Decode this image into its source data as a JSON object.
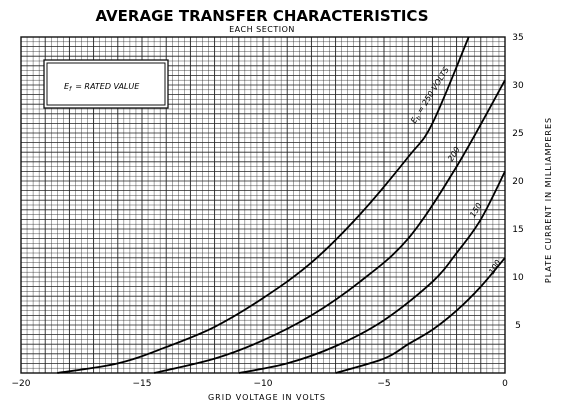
{
  "chart_data": {
    "type": "line",
    "title": "AVERAGE TRANSFER CHARACTERISTICS",
    "subtitle": "EACH SECTION",
    "xlabel": "GRID VOLTAGE IN VOLTS",
    "ylabel": "PLATE CURRENT IN MILLIAMPERES",
    "xlim": [
      -20,
      0
    ],
    "ylim": [
      0,
      35
    ],
    "x_ticks": [
      -20,
      -15,
      -10,
      -5,
      0
    ],
    "x_tick_labels": [
      "−20",
      "−15",
      "−10",
      "−5",
      "0"
    ],
    "y_ticks": [
      5,
      10,
      15,
      20,
      25,
      30,
      35
    ],
    "y_tick_labels": [
      "5",
      "10",
      "15",
      "20",
      "25",
      "30",
      "35"
    ],
    "grid": true,
    "note": {
      "symbol": "E",
      "subscript": "f",
      "text": "= RATED VALUE"
    },
    "series": [
      {
        "name": "Eb = 250 VOLTS",
        "label_symbol": "E",
        "label_subscript": "b",
        "label_text": "= 250 VOLTS",
        "x": [
          -18.5,
          -16,
          -14,
          -12,
          -10,
          -8,
          -6,
          -4,
          -3,
          -1.5
        ],
        "y": [
          0,
          1,
          2.7,
          4.8,
          7.8,
          11.5,
          16.5,
          22.5,
          26,
          35
        ]
      },
      {
        "name": "200",
        "label_text": "200",
        "x": [
          -14.5,
          -12,
          -10,
          -8,
          -6,
          -4,
          -2,
          0
        ],
        "y": [
          0,
          1.5,
          3.4,
          6,
          9.5,
          14,
          21.5,
          30.5
        ]
      },
      {
        "name": "150",
        "label_text": "150",
        "x": [
          -11,
          -9,
          -7,
          -5,
          -3,
          -2,
          -1,
          0
        ],
        "y": [
          0,
          1,
          2.8,
          5.5,
          9.5,
          12.5,
          16,
          21
        ]
      },
      {
        "name": "100",
        "label_text": "100",
        "x": [
          -7,
          -5,
          -4,
          -3,
          -2,
          -1,
          0
        ],
        "y": [
          0,
          1.5,
          3,
          4.5,
          6.5,
          9,
          12
        ]
      }
    ]
  }
}
